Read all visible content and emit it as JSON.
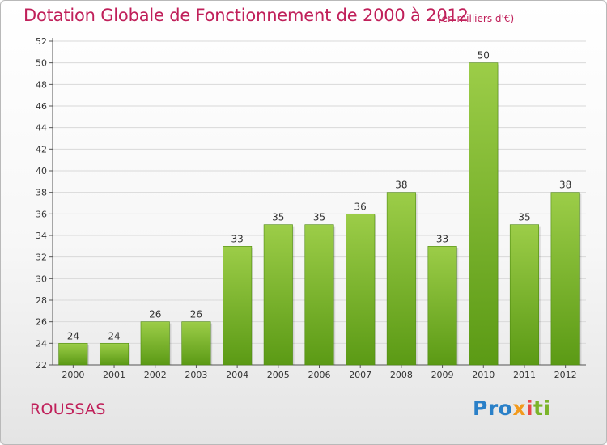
{
  "header": {
    "title": "Dotation Globale de Fonctionnement de 2000 à 2012",
    "subtitle": "(en milliers d'€)"
  },
  "footer": {
    "commune": "ROUSSAS",
    "logo_parts": [
      "Pro",
      "x",
      "i",
      "ti"
    ]
  },
  "colors": {
    "title": "#c0205a",
    "bar_light": "#9ccd48",
    "bar_dark": "#5b9a15",
    "grid": "#d9d9d9",
    "axis": "#555555"
  },
  "chart_data": {
    "type": "bar",
    "title": "Dotation Globale de Fonctionnement de 2000 à 2012",
    "subtitle": "(en milliers d'€)",
    "xlabel": "",
    "ylabel": "",
    "categories": [
      "2000",
      "2001",
      "2002",
      "2003",
      "2004",
      "2005",
      "2006",
      "2007",
      "2008",
      "2009",
      "2010",
      "2011",
      "2012"
    ],
    "values": [
      24,
      24,
      26,
      26,
      33,
      35,
      35,
      36,
      38,
      33,
      50,
      35,
      38
    ],
    "ylim": [
      22,
      52
    ],
    "ytick_step": 2,
    "grid": true,
    "legend": "none"
  }
}
